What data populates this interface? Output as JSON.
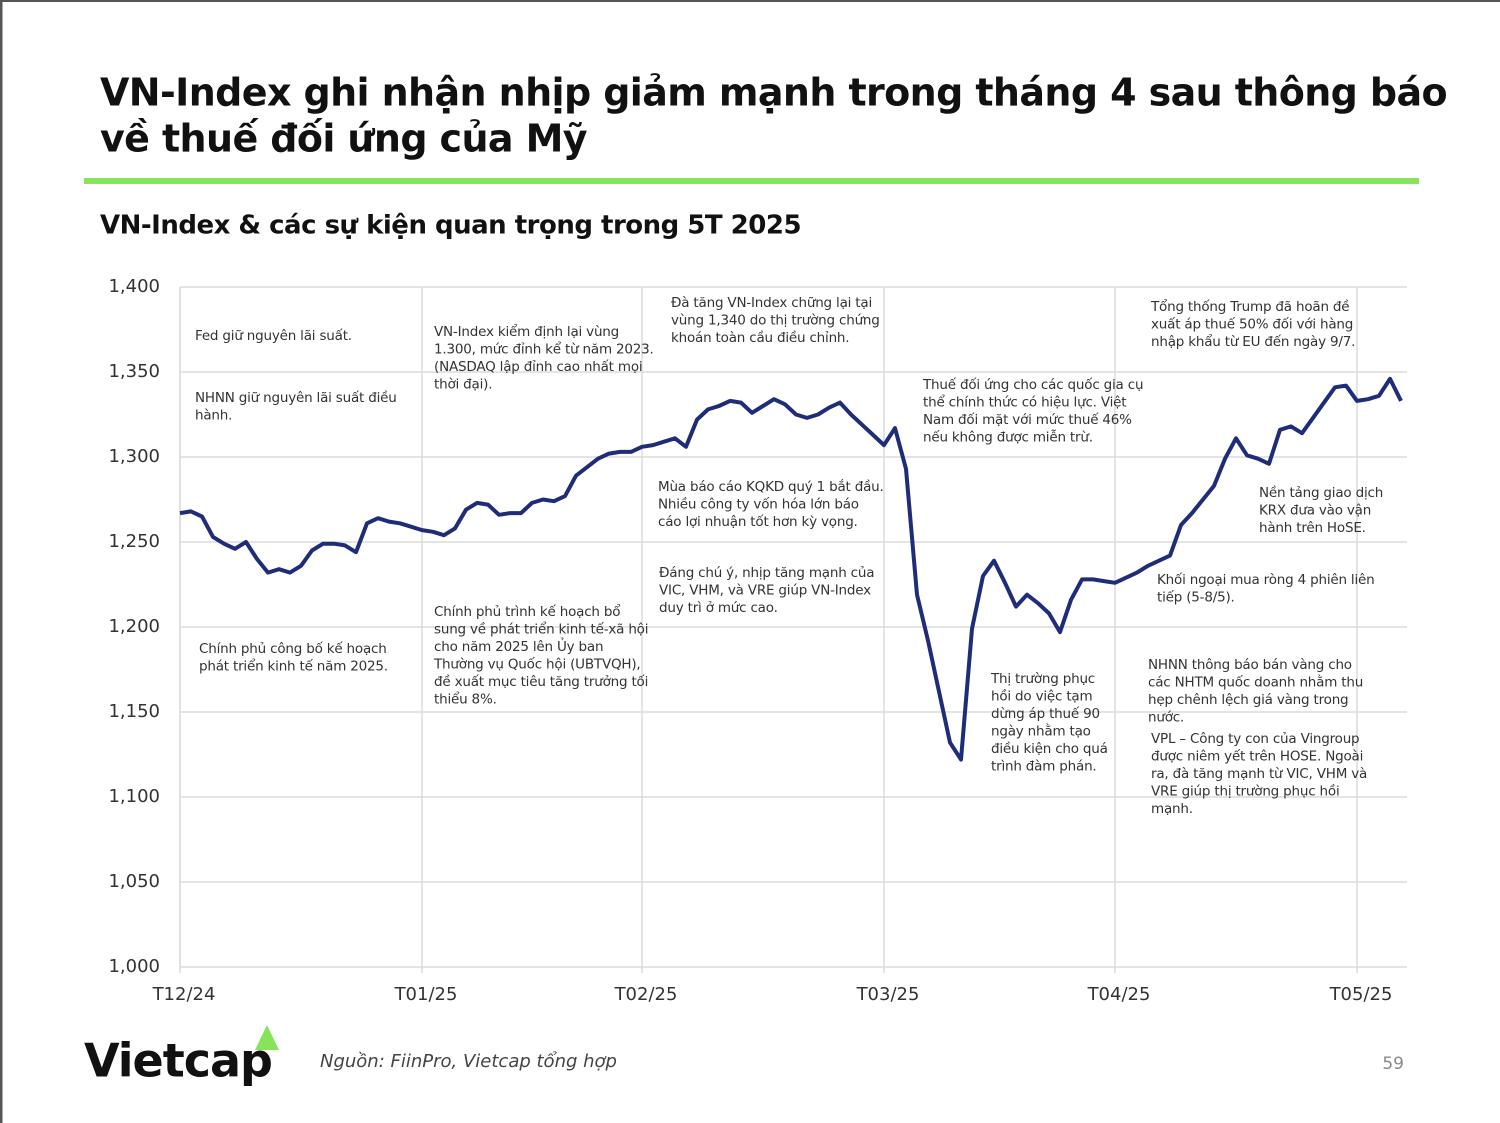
{
  "slide": {
    "title_lines": [
      "VN-Index ghi nhận nhịp giảm mạnh trong tháng 4 sau thông báo",
      "về thuế đối ứng của Mỹ"
    ]
  },
  "chart_data": {
    "type": "line",
    "title": "VN-Index & các sự kiện quan trọng trong 5T 2025",
    "categories": [
      "T12/24",
      null,
      null,
      null,
      null,
      null,
      null,
      null,
      null,
      null,
      null,
      null,
      null,
      null,
      null,
      null,
      null,
      null,
      null,
      null,
      null,
      null,
      "T01/25",
      null,
      null,
      null,
      null,
      null,
      null,
      null,
      null,
      null,
      null,
      null,
      null,
      null,
      null,
      null,
      null,
      null,
      null,
      null,
      "T02/25",
      null,
      null,
      null,
      null,
      null,
      null,
      null,
      null,
      null,
      null,
      null,
      null,
      null,
      null,
      null,
      null,
      null,
      null,
      null,
      null,
      null,
      "T03/25",
      null,
      null,
      null,
      null,
      null,
      null,
      null,
      null,
      null,
      null,
      null,
      null,
      null,
      null,
      null,
      null,
      null,
      null,
      null,
      null,
      "T04/25",
      null,
      null,
      null,
      null,
      null,
      null,
      null,
      null,
      null,
      null,
      null,
      null,
      null,
      null,
      null,
      null,
      null,
      null,
      null,
      null,
      null,
      "T05/25",
      null,
      null,
      null,
      null
    ],
    "values": [
      1267,
      1268,
      1265,
      1253,
      1249,
      1246,
      1250,
      1240,
      1232,
      1234,
      1232,
      1236,
      1245,
      1249,
      1249,
      1248,
      1244,
      1261,
      1264,
      1262,
      1261,
      1259,
      1257,
      1256,
      1254,
      1258,
      1269,
      1273,
      1272,
      1266,
      1267,
      1267,
      1273,
      1275,
      1274,
      1277,
      1289,
      1294,
      1299,
      1302,
      1303,
      1303,
      1306,
      1307,
      1309,
      1311,
      1306,
      1322,
      1328,
      1330,
      1333,
      1332,
      1326,
      1330,
      1334,
      1331,
      1325,
      1323,
      1325,
      1329,
      1332,
      1325,
      1319,
      1313,
      1307,
      1317,
      1293,
      1219,
      1192,
      1162,
      1132,
      1122,
      1199,
      1230,
      1239,
      1226,
      1212,
      1219,
      1214,
      1208,
      1197,
      1216,
      1228,
      1228,
      1227,
      1226,
      1229,
      1232,
      1236,
      1239,
      1242,
      1260,
      1267,
      1275,
      1283,
      1299,
      1311,
      1301,
      1299,
      1296,
      1316,
      1318,
      1314,
      1323,
      1332,
      1341,
      1342,
      1333,
      1334,
      1336,
      1346,
      1333
    ],
    "color": "#1f2d78",
    "ylim": [
      1000,
      1400
    ],
    "yticks": [
      {
        "value": 1000,
        "label": "1,000"
      },
      {
        "value": 1050,
        "label": "1,050"
      },
      {
        "value": 1100,
        "label": "1,100"
      },
      {
        "value": 1150,
        "label": "1,150"
      },
      {
        "value": 1200,
        "label": "1,200"
      },
      {
        "value": 1250,
        "label": "1,250"
      },
      {
        "value": 1300,
        "label": "1,300"
      },
      {
        "value": 1350,
        "label": "1,350"
      },
      {
        "value": 1400,
        "label": "1,400"
      }
    ],
    "grid": true,
    "annotations": [
      [
        "Fed giữ nguyên lãi suất."
      ],
      [
        "NHNN giữ nguyên lãi suất điều",
        "hành."
      ],
      [
        "Chính phủ công bố kế hoạch",
        "phát triển kinh tế năm 2025."
      ],
      [
        "VN-Index kiểm định lại vùng",
        "1.300, mức đỉnh kể từ năm 2023.",
        "(NASDAQ lập đỉnh cao nhất mọi",
        "thời đại)."
      ],
      [
        "Chính phủ trình kế hoạch bổ",
        "sung về phát triển kinh tế-xã hội",
        "cho năm 2025 lên Ủy ban",
        "Thường vụ Quốc hội (UBTVQH),",
        "đề xuất mục tiêu tăng trưởng tối",
        "thiểu 8%."
      ],
      [
        "Đà tăng VN-Index chững lại tại",
        "vùng 1,340 do thị trường chứng",
        "khoán toàn cầu điều chỉnh."
      ],
      [
        "Mùa báo cáo KQKD quý 1 bắt đầu.",
        "Nhiều công ty vốn hóa lớn báo",
        "cáo lợi nhuận tốt hơn kỳ vọng."
      ],
      [
        "Đáng chú ý, nhịp tăng mạnh của",
        "VIC, VHM, và VRE giúp VN-Index",
        "duy trì ở mức cao."
      ],
      [
        "Thuế đối ứng cho các quốc gia cụ",
        "thể chính thức có hiệu lực. Việt",
        "Nam đối mặt với mức thuế 46%",
        "nếu không được miễn trừ."
      ],
      [
        "Thị trường phục",
        "hồi do việc tạm",
        "dừng áp thuế 90",
        "ngày nhằm tạo",
        "điều kiện cho quá",
        "trình đàm phán."
      ],
      [
        "Tổng thống Trump đã hoãn đề",
        "xuất áp thuế 50% đối với hàng",
        "nhập khẩu từ EU đến ngày 9/7."
      ],
      [
        "Nền tảng giao dịch",
        "KRX đưa vào vận",
        "hành trên HoSE."
      ],
      [
        "Khối ngoại mua ròng 4 phiên liên",
        "tiếp (5-8/5)."
      ],
      [
        "NHNN thông báo bán vàng cho",
        "các NHTM quốc doanh nhằm thu",
        "hẹp chênh lệch giá vàng trong",
        "nước."
      ],
      [
        "VPL – Công ty con của Vingroup",
        "được niêm yết trên HOSE. Ngoài",
        "ra, đà tăng mạnh từ VIC, VHM và",
        "VRE giúp thị trường phục hồi",
        "mạnh."
      ]
    ]
  },
  "footer": {
    "logo": "Vietcap",
    "source": "Nguồn: FiinPro, Vietcap tổng hợp",
    "page": "59"
  }
}
